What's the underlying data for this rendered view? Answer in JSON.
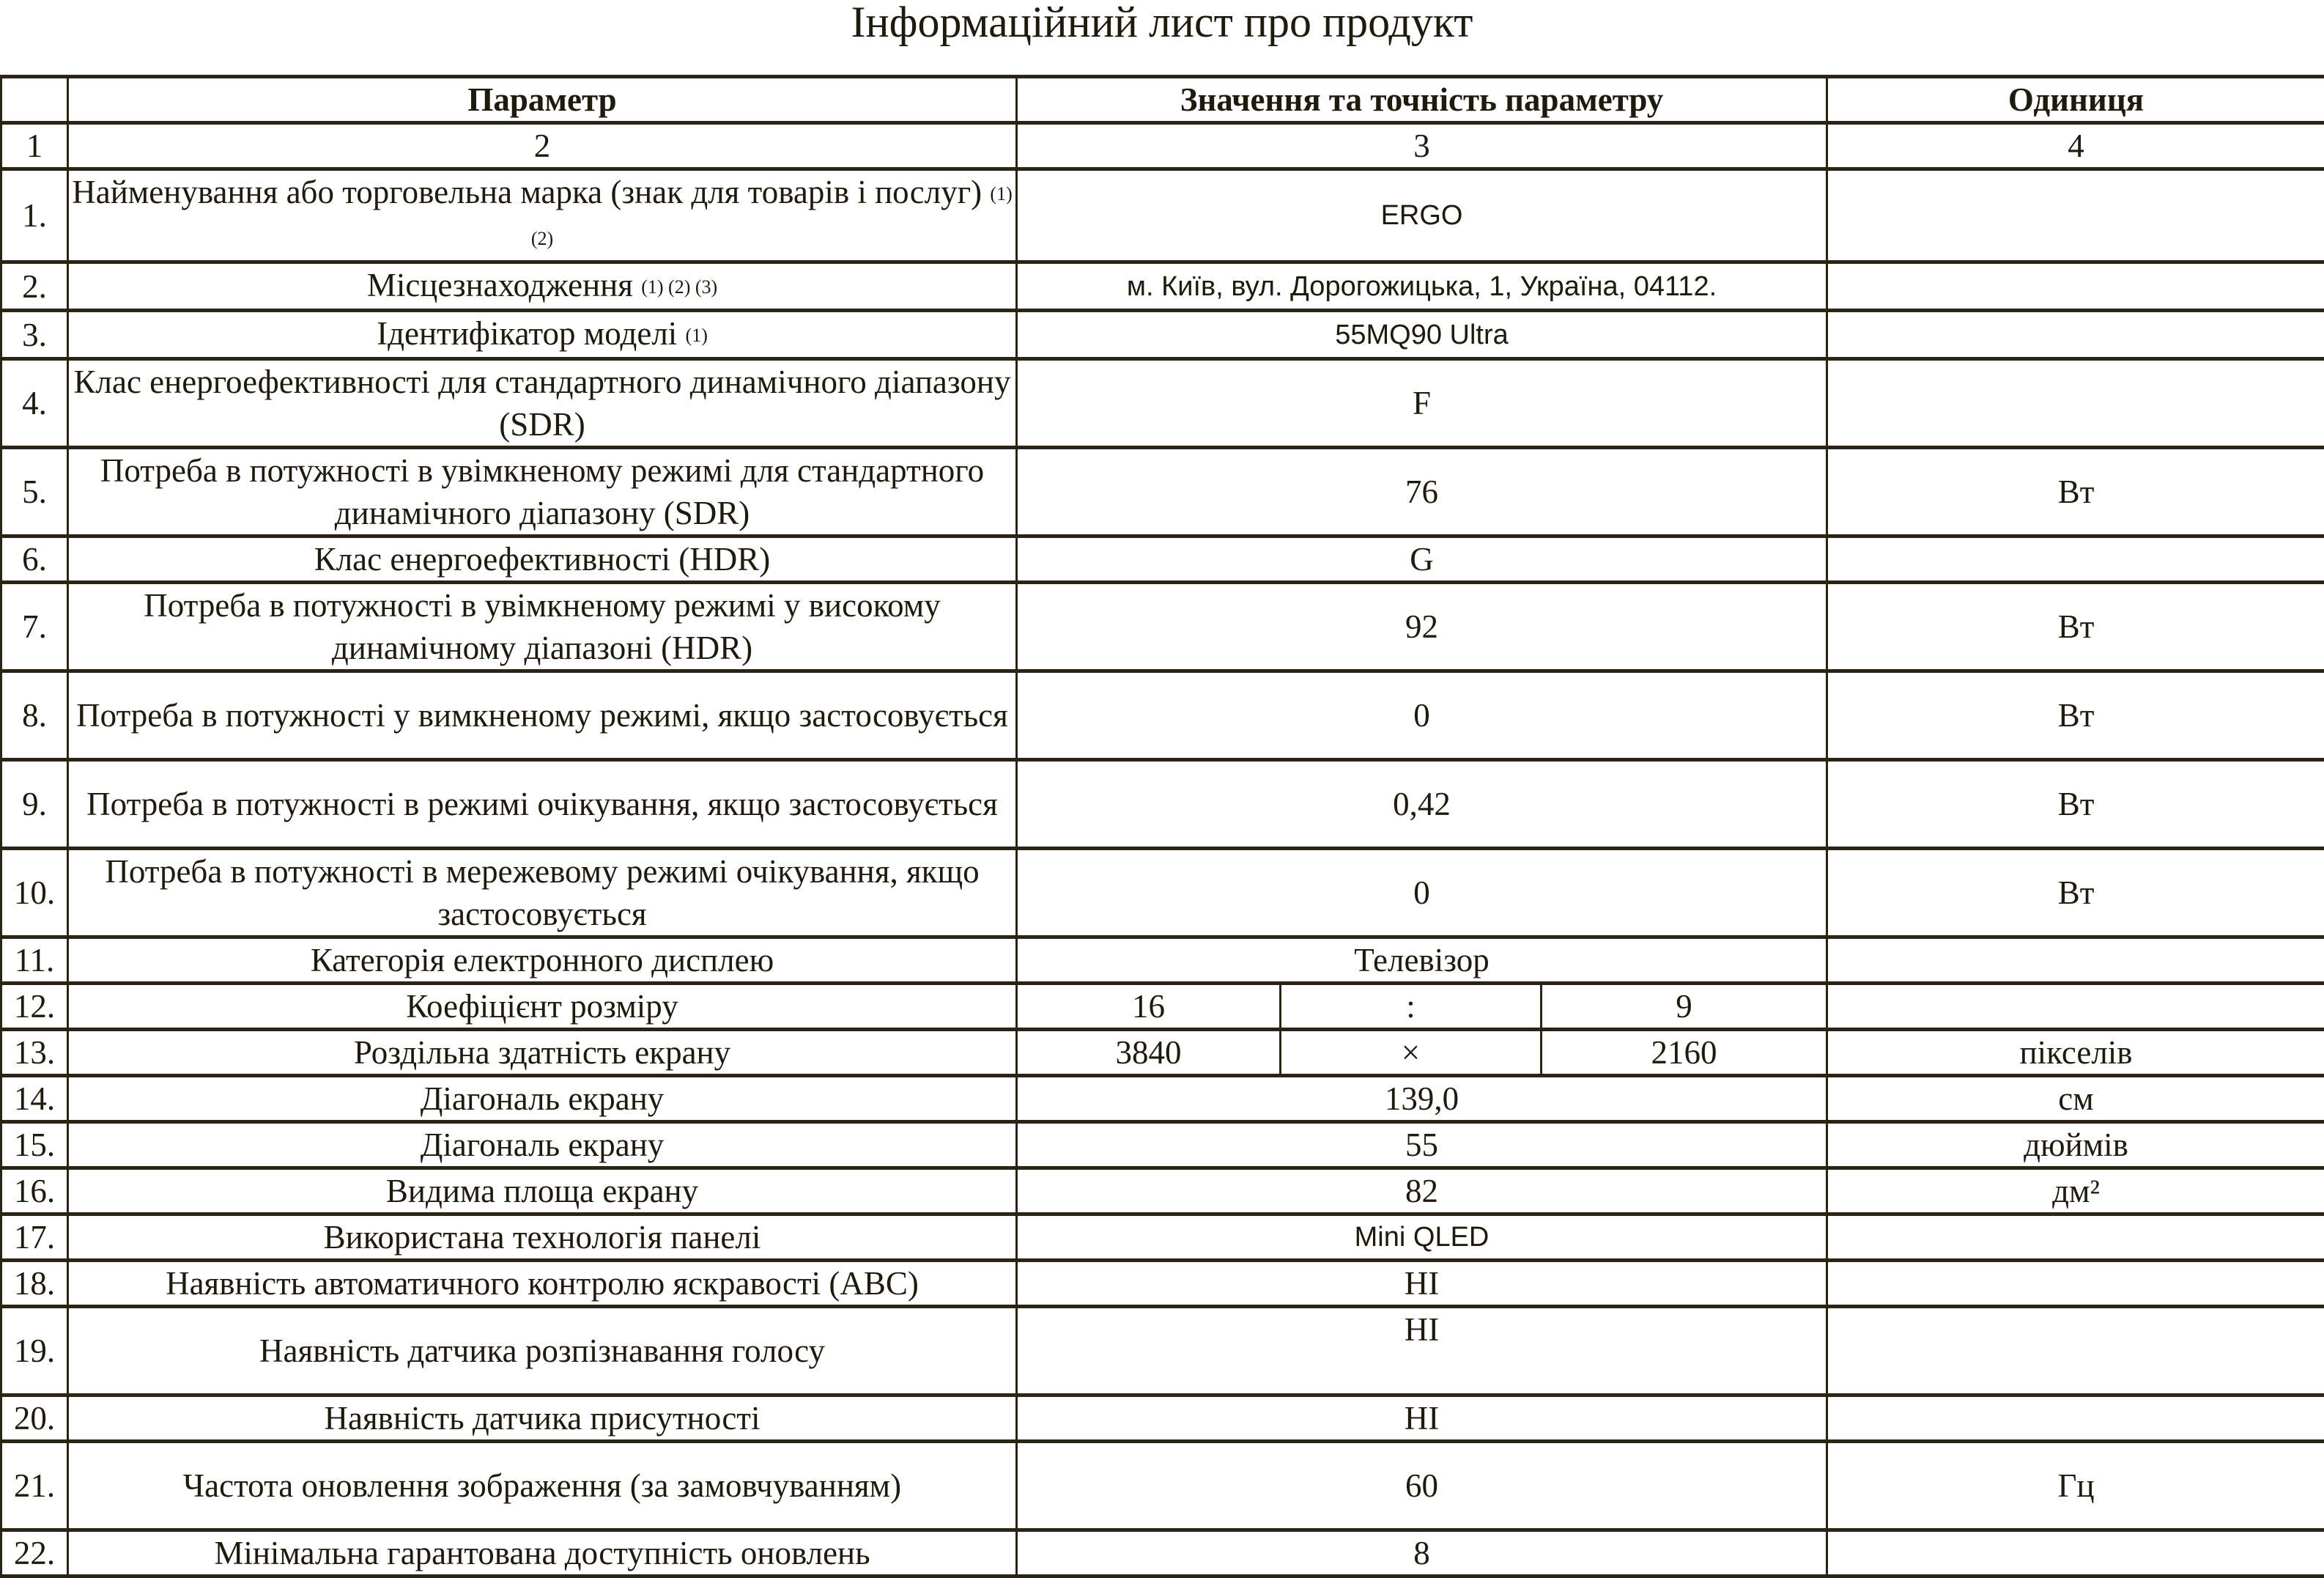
{
  "title": "Інформаційний лист про продукт",
  "header": {
    "param": "Параметр",
    "value": "Значення та точність параметру",
    "unit": "Одиниця"
  },
  "column_numbers": [
    "1",
    "2",
    "3",
    "4"
  ],
  "rows": [
    {
      "n": "1.",
      "param": "Найменування або торговельна марка (знак для товарів і послуг)",
      "notes": "(1) (2)",
      "value": "ERGO",
      "sans": true,
      "unit": "",
      "h": 2
    },
    {
      "n": "2.",
      "param": "Місцезнаходження",
      "notes": "(1) (2) (3)",
      "value": "м. Київ, вул. Дорогожицька, 1, Україна, 04112.",
      "sans": true,
      "unit": "",
      "h": 1
    },
    {
      "n": "3.",
      "param": "Ідентифікатор моделі",
      "notes": "(1)",
      "value": "55MQ90 Ultra",
      "sans": true,
      "unit": "",
      "h": 1
    },
    {
      "n": "4.",
      "param": "Клас енергоефективності для стандартного динамічного діапазону (SDR)",
      "value": "F",
      "unit": "",
      "h": 2
    },
    {
      "n": "5.",
      "param": "Потреба в потужності в увімкненому режимі для стандартного динамічного діапазону (SDR)",
      "value": "76",
      "unit": "Вт",
      "h": 2
    },
    {
      "n": "6.",
      "param": "Клас енергоефективності (HDR)",
      "value": "G",
      "unit": "",
      "h": 1
    },
    {
      "n": "7.",
      "param": "Потреба в потужності в увімкненому режимі у високому динамічному діапазоні (HDR)",
      "value": "92",
      "unit": "Вт",
      "h": 2
    },
    {
      "n": "8.",
      "param": "Потреба в потужності у вимкненому режимі, якщо застосовується",
      "value": "0",
      "unit": "Вт",
      "h": 2
    },
    {
      "n": "9.",
      "param": "Потреба в потужності в режимі очікування, якщо застосовується",
      "value": "0,42",
      "unit": "Вт",
      "h": 2
    },
    {
      "n": "10.",
      "param": "Потреба в потужності в мережевому режимі очікування, якщо застосовується",
      "value": "0",
      "unit": "Вт",
      "h": 2
    },
    {
      "n": "11.",
      "param": "Категорія електронного дисплею",
      "value": "Телевізор",
      "unit": "",
      "h": 1
    },
    {
      "n": "12.",
      "param": "Коефіцієнт розміру",
      "split": [
        "16",
        ":",
        "9"
      ],
      "unit": "",
      "h": 1
    },
    {
      "n": "13.",
      "param": "Роздільна здатність екрану",
      "split": [
        "3840",
        "×",
        "2160"
      ],
      "unit": "пікселів",
      "h": 1
    },
    {
      "n": "14.",
      "param": "Діагональ екрану",
      "value": "139,0",
      "unit": "см",
      "h": 1
    },
    {
      "n": "15.",
      "param": "Діагональ екрану",
      "value": "55",
      "unit": "дюймів",
      "h": 1
    },
    {
      "n": "16.",
      "param": "Видима площа екрану",
      "value": "82",
      "unit": "дм²",
      "h": 1
    },
    {
      "n": "17.",
      "param": "Використана технологія панелі",
      "value": "Mini QLED",
      "sans": true,
      "unit": "",
      "h": 1
    },
    {
      "n": "18.",
      "param": "Наявність автоматичного контролю яскравості (ABC)",
      "value": "НІ",
      "unit": "",
      "h": 1
    },
    {
      "n": "19.",
      "param": "Наявність датчика розпізнавання голосу",
      "value": "НІ",
      "valueTop": true,
      "unit": "",
      "h": 2
    },
    {
      "n": "20.",
      "param": "Наявність датчика присутності",
      "value": "НІ",
      "unit": "",
      "h": 1
    },
    {
      "n": "21.",
      "param": "Частота оновлення зображення (за замовчуванням)",
      "value": "60",
      "unit": "Гц",
      "h": 2
    },
    {
      "n": "22.",
      "param": "Мінімальна гарантована доступність оновлень",
      "value": "8",
      "unit": "",
      "h": 1
    }
  ]
}
